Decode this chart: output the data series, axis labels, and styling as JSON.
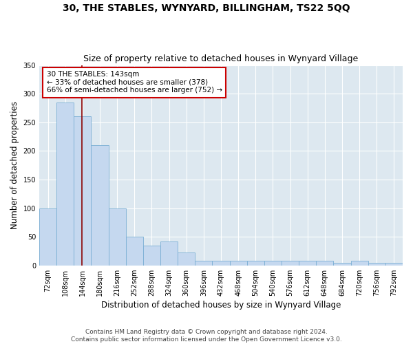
{
  "title": "30, THE STABLES, WYNYARD, BILLINGHAM, TS22 5QQ",
  "subtitle": "Size of property relative to detached houses in Wynyard Village",
  "xlabel": "Distribution of detached houses by size in Wynyard Village",
  "ylabel": "Number of detached properties",
  "bin_labels": [
    "72sqm",
    "108sqm",
    "144sqm",
    "180sqm",
    "216sqm",
    "252sqm",
    "288sqm",
    "324sqm",
    "360sqm",
    "396sqm",
    "432sqm",
    "468sqm",
    "504sqm",
    "540sqm",
    "576sqm",
    "612sqm",
    "648sqm",
    "684sqm",
    "720sqm",
    "756sqm",
    "792sqm"
  ],
  "bar_values": [
    100,
    285,
    260,
    210,
    100,
    50,
    35,
    42,
    22,
    8,
    8,
    8,
    8,
    8,
    8,
    8,
    8,
    5,
    8,
    5,
    5
  ],
  "bar_color": "#c5d8ef",
  "bar_edge_color": "#7aafd4",
  "bar_edge_width": 0.6,
  "vline_color": "#8b0000",
  "annotation_text": "30 THE STABLES: 143sqm\n← 33% of detached houses are smaller (378)\n66% of semi-detached houses are larger (752) →",
  "annotation_box_color": "#ffffff",
  "annotation_box_edge": "#cc0000",
  "ylim": [
    0,
    350
  ],
  "yticks": [
    0,
    50,
    100,
    150,
    200,
    250,
    300,
    350
  ],
  "footnote": "Contains HM Land Registry data © Crown copyright and database right 2024.\nContains public sector information licensed under the Open Government Licence v3.0.",
  "fig_bg_color": "#ffffff",
  "plot_bg_color": "#dde8f0",
  "title_fontsize": 10,
  "subtitle_fontsize": 9,
  "axis_label_fontsize": 8.5,
  "tick_fontsize": 7,
  "footnote_fontsize": 6.5
}
